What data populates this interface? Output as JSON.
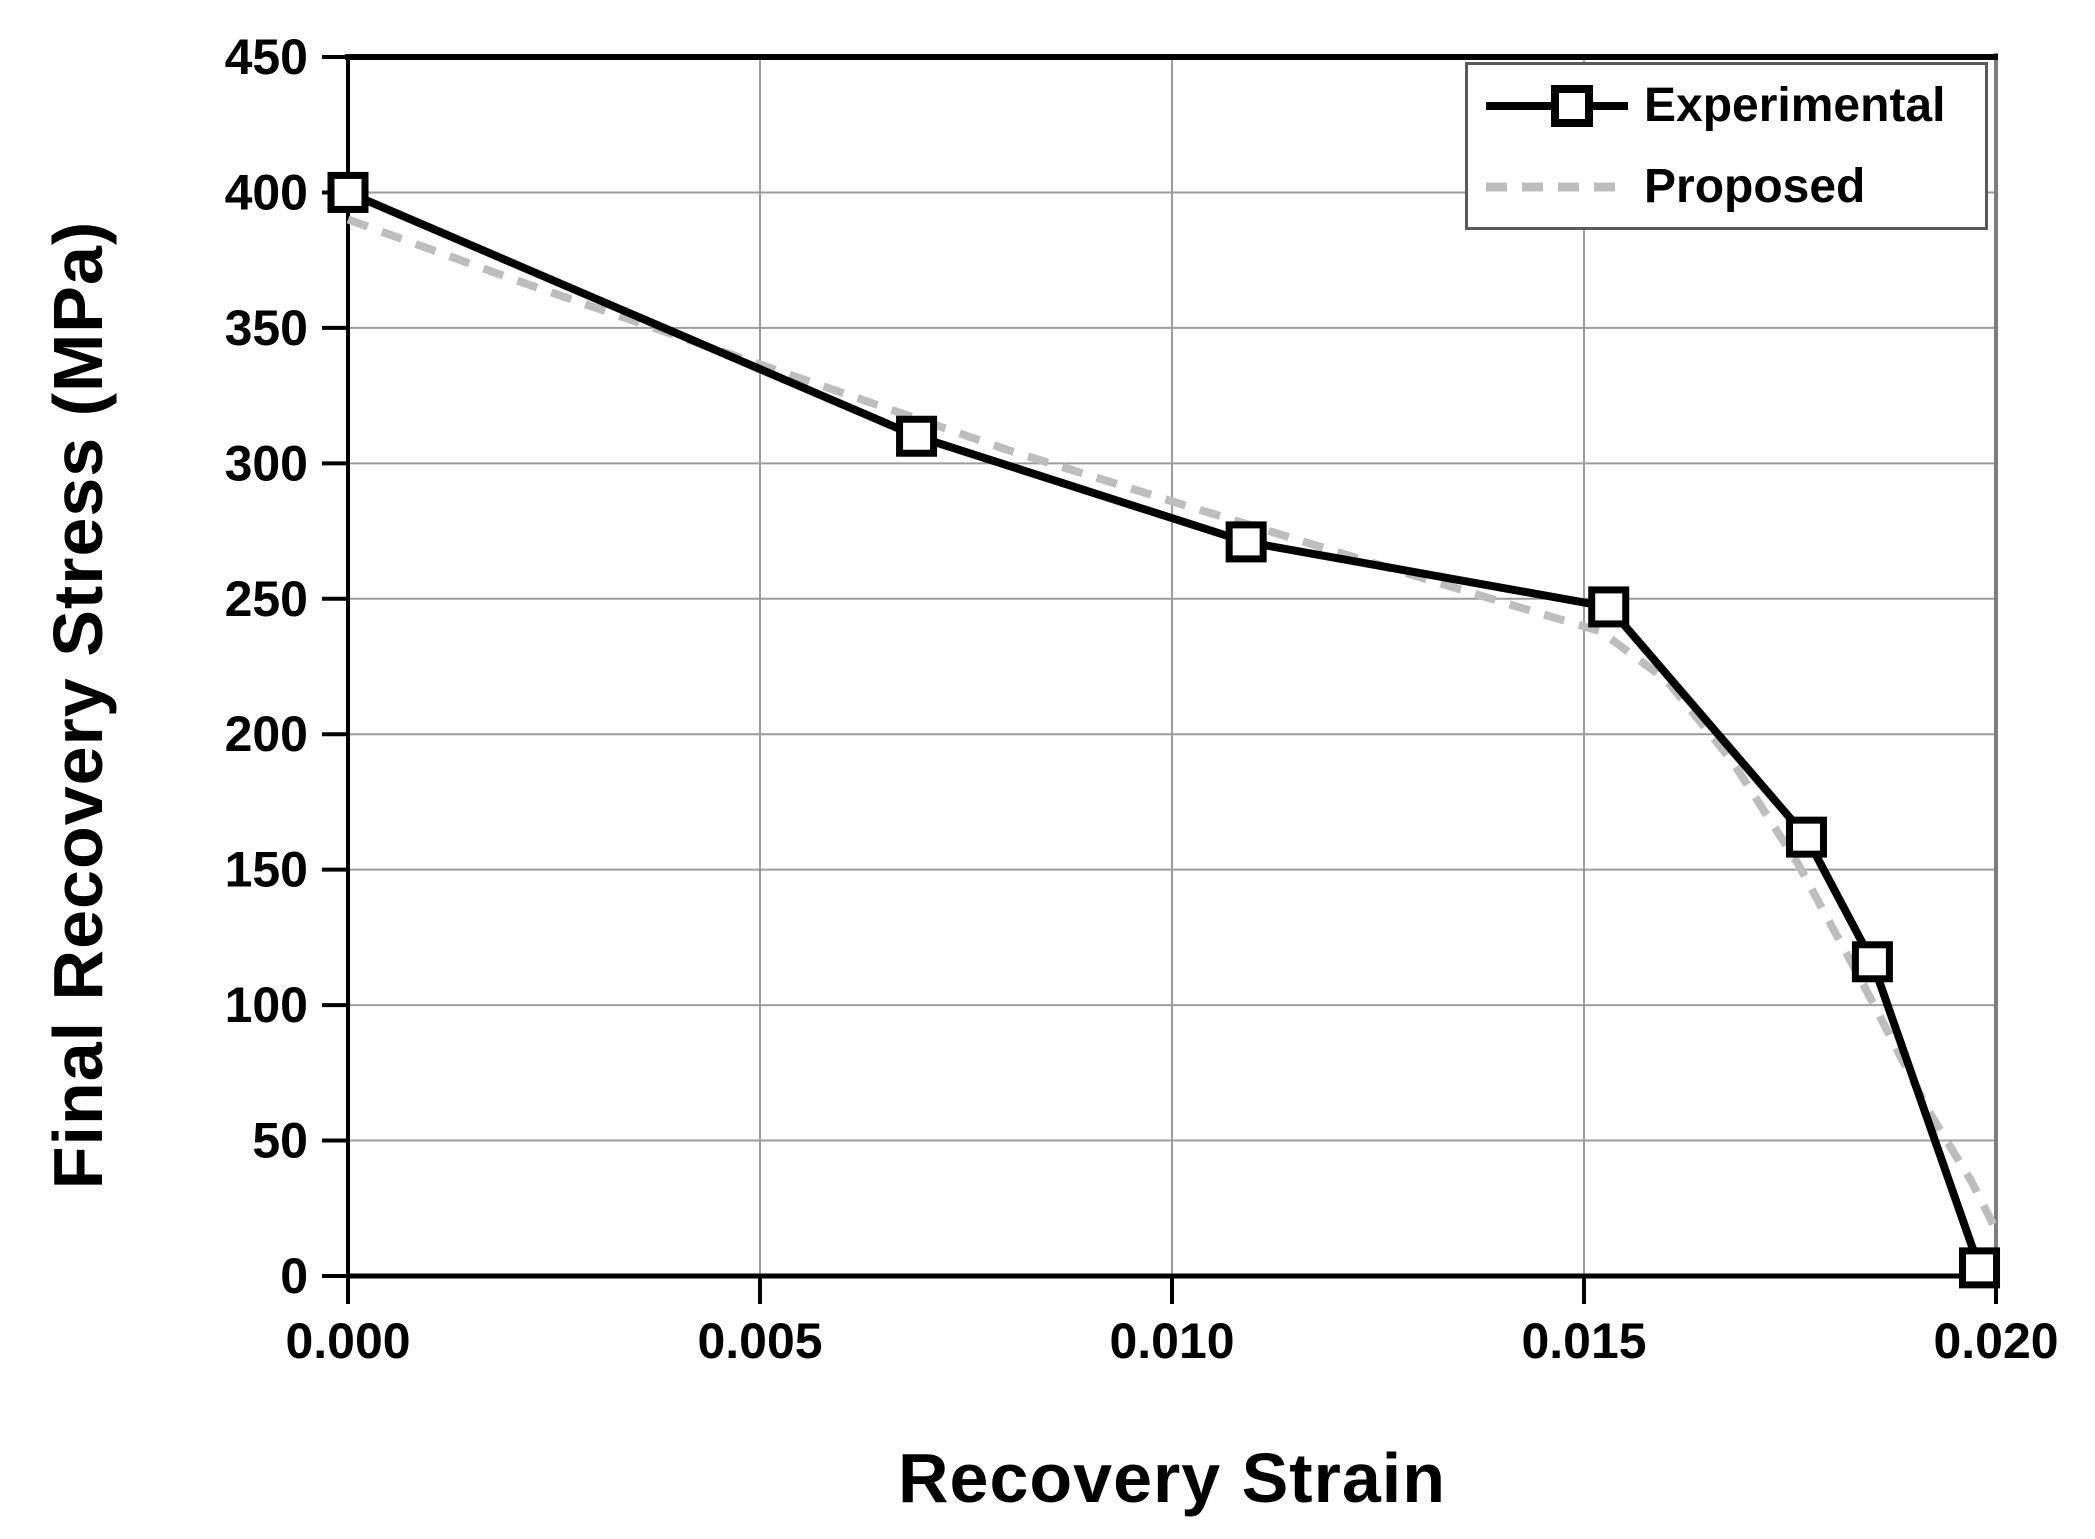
{
  "chart_data": {
    "type": "line",
    "title": "",
    "xlabel": "Recovery Strain",
    "ylabel": "Final Recovery Stress (MPa)",
    "xlim": [
      0.0,
      0.02
    ],
    "ylim": [
      0,
      450
    ],
    "grid": true,
    "legend_position": "top-right",
    "x_ticks": [
      0.0,
      0.005,
      0.01,
      0.015,
      0.02
    ],
    "x_tick_labels": [
      "0.000",
      "0.005",
      "0.010",
      "0.015",
      "0.020"
    ],
    "y_ticks": [
      0,
      50,
      100,
      150,
      200,
      250,
      300,
      350,
      400,
      450
    ],
    "y_tick_labels": [
      "0",
      "50",
      "100",
      "150",
      "200",
      "250",
      "300",
      "350",
      "400",
      "450"
    ],
    "series": [
      {
        "name": "Experimental",
        "line_style": "solid",
        "color": "#000000",
        "marker": "open-square",
        "points": [
          [
            0.0,
            400
          ],
          [
            0.0069,
            310
          ],
          [
            0.0109,
            271
          ],
          [
            0.0153,
            247
          ],
          [
            0.0177,
            162
          ],
          [
            0.0185,
            116
          ],
          [
            0.0198,
            3
          ]
        ]
      },
      {
        "name": "Proposed",
        "line_style": "dashed",
        "color": "#bdbdbd",
        "marker": "none",
        "points": [
          [
            0.0,
            390
          ],
          [
            0.002,
            368
          ],
          [
            0.004,
            347
          ],
          [
            0.006,
            326
          ],
          [
            0.008,
            305
          ],
          [
            0.01,
            286
          ],
          [
            0.0115,
            272
          ],
          [
            0.013,
            258
          ],
          [
            0.0142,
            247
          ],
          [
            0.0152,
            238
          ],
          [
            0.016,
            220
          ],
          [
            0.0168,
            190
          ],
          [
            0.0176,
            152
          ],
          [
            0.0184,
            107
          ],
          [
            0.0192,
            60
          ],
          [
            0.0197,
            35
          ],
          [
            0.02,
            17
          ]
        ]
      }
    ]
  },
  "axes": {
    "x_title": "Recovery Strain",
    "y_title": "Final Recovery Stress (MPa)"
  },
  "legend": {
    "items": [
      {
        "label": "Experimental"
      },
      {
        "label": "Proposed"
      }
    ]
  },
  "colors": {
    "experimental": "#000000",
    "proposed": "#bdbdbd",
    "gridline": "#9c9c9c",
    "frame_right": "#7d7d7d",
    "legend_border": "#5a5a5a",
    "background": "#ffffff",
    "text": "#000000"
  }
}
